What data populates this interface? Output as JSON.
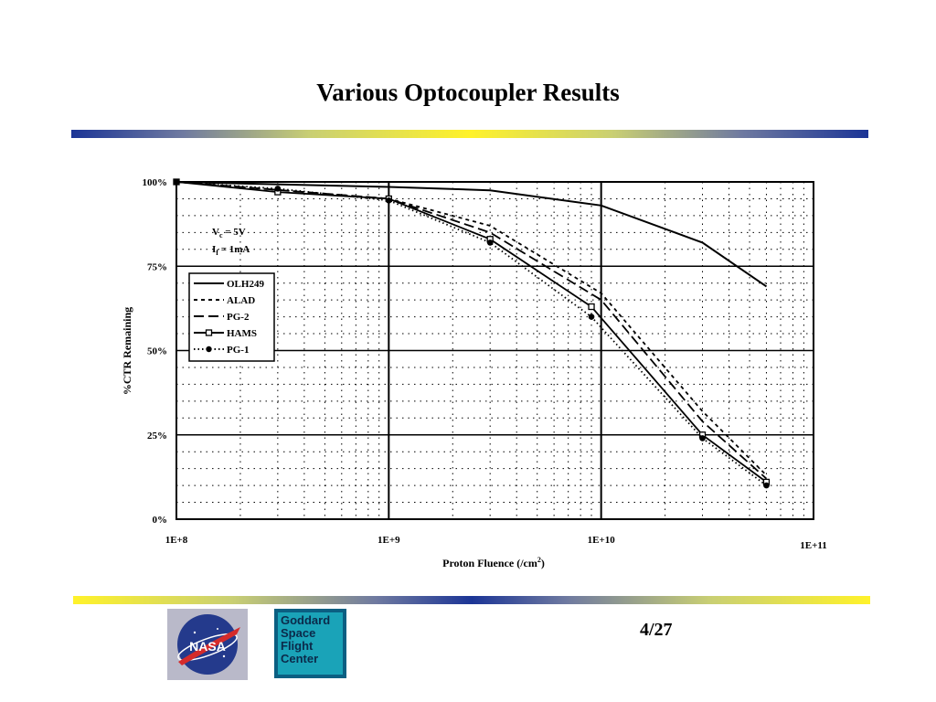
{
  "slide": {
    "title": "Various Optocoupler Results",
    "page_number": "4/27"
  },
  "logos": {
    "nasa": {
      "text": "NASA",
      "icon": "nasa-meatball-logo"
    },
    "gsfc": {
      "lines": [
        "Goddard",
        "Space",
        "Flight",
        "Center"
      ],
      "icon": "gsfc-logo"
    }
  },
  "colors": {
    "bar_blue": "#1c3596",
    "bar_yellow": "#fff22a",
    "gsfc_teal": "#1aa3b8"
  },
  "chart_data": {
    "type": "line",
    "xlabel": "Proton Fluence (/cm",
    "xlabel_sup": "2",
    "xlabel_end": ")",
    "ylabel": "%CTR Remaining",
    "x_scale": "log",
    "xlim": [
      100000000,
      100000000000
    ],
    "ylim": [
      0,
      100
    ],
    "x_ticks": [
      {
        "value": 100000000,
        "label": "1E+8"
      },
      {
        "value": 1000000000,
        "label": "1E+9"
      },
      {
        "value": 10000000000,
        "label": "1E+10"
      },
      {
        "value": 100000000000,
        "label": "1E+11"
      }
    ],
    "y_ticks": [
      {
        "value": 0,
        "label": "0%"
      },
      {
        "value": 25,
        "label": "25%"
      },
      {
        "value": 50,
        "label": "50%"
      },
      {
        "value": 75,
        "label": "75%"
      },
      {
        "value": 100,
        "label": "100%"
      }
    ],
    "grid": true,
    "legend_position": "left",
    "conditions": [
      {
        "sym": "V",
        "sub": "c",
        "rest": " = 5V"
      },
      {
        "sym": "I",
        "sub": "f",
        "rest": " = 1mA"
      }
    ],
    "series": [
      {
        "name": "OLH249",
        "style": "solid",
        "marker": "none",
        "x": [
          100000000,
          1000000000,
          3000000000,
          10000000000,
          30000000000,
          60000000000
        ],
        "y": [
          100,
          98.5,
          97.5,
          93,
          82,
          69
        ]
      },
      {
        "name": "ALAD",
        "style": "dashed",
        "marker": "none",
        "x": [
          100000000,
          1000000000,
          3000000000,
          10000000000,
          30000000000,
          60000000000
        ],
        "y": [
          100,
          95,
          87,
          67,
          32,
          13
        ]
      },
      {
        "name": "PG-2",
        "style": "longdash",
        "marker": "none",
        "x": [
          100000000,
          1000000000,
          3000000000,
          10000000000,
          30000000000,
          60000000000
        ],
        "y": [
          100,
          95,
          85,
          65,
          29,
          12
        ]
      },
      {
        "name": "HAMS",
        "style": "solid",
        "marker": "open-square",
        "x": [
          100000000,
          300000000,
          1000000000,
          3000000000,
          9000000000,
          30000000000,
          60000000000
        ],
        "y": [
          100,
          97,
          95,
          83,
          63,
          25,
          11
        ]
      },
      {
        "name": "PG-1",
        "style": "dotted",
        "marker": "filled-circle",
        "x": [
          100000000,
          300000000,
          1000000000,
          3000000000,
          9000000000,
          30000000000,
          60000000000
        ],
        "y": [
          100,
          98,
          94.5,
          82,
          60,
          24,
          10
        ]
      }
    ]
  }
}
